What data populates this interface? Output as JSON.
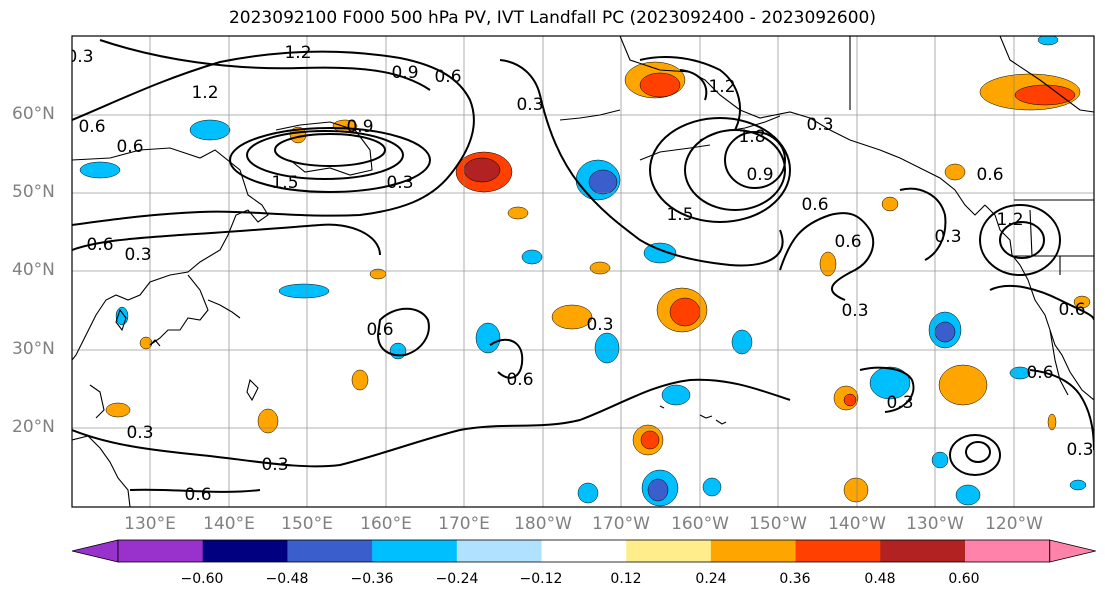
{
  "title": "2023092100 F000 500 hPa PV, IVT Landfall PC (2023092400 - 2023092600)",
  "map": {
    "region": "North Pacific",
    "lat_labels": [
      "60°N",
      "50°N",
      "40°N",
      "30°N",
      "20°N"
    ],
    "lon_labels": [
      "130°E",
      "140°E",
      "150°E",
      "160°E",
      "170°E",
      "180°W",
      "170°W",
      "160°W",
      "150°W",
      "140°W",
      "130°W",
      "120°W"
    ],
    "contour_labels": [
      "1.2",
      "1.2",
      "0.9",
      "0.6",
      "0.3",
      "0.6",
      "0.6",
      "0.3",
      "1.2",
      "0.9",
      "0.6",
      "0.3",
      "0.6",
      "0.6",
      "0.3",
      "0.3",
      "0.3",
      "0.6",
      "0.6",
      "0.6",
      "0.3",
      "0.3",
      "0.6",
      "0.3",
      "0.3",
      "0.3",
      "0.6",
      "0.6",
      "1.5",
      "1.8",
      "0.9",
      "1.2",
      "1.5",
      "0.3"
    ]
  },
  "colorbar": {
    "ticks": [
      "−0.60",
      "−0.48",
      "−0.36",
      "−0.24",
      "−0.12",
      "0.12",
      "0.24",
      "0.36",
      "0.48",
      "0.60"
    ],
    "colors": [
      "#9932cc",
      "#000080",
      "#3a5fcd",
      "#00bfff",
      "#b0e2ff",
      "#ffffff",
      "#ffec8b",
      "#ffa500",
      "#ff4000",
      "#b22222",
      "#ff82ab"
    ],
    "extend": "both"
  },
  "fill_colors": {
    "pos1": "#ffec8b",
    "pos2": "#ffa500",
    "pos3": "#ff4000",
    "pos4": "#b22222",
    "neg1": "#b0e2ff",
    "neg2": "#00bfff",
    "neg3": "#3a5fcd",
    "neg4": "#000080"
  }
}
